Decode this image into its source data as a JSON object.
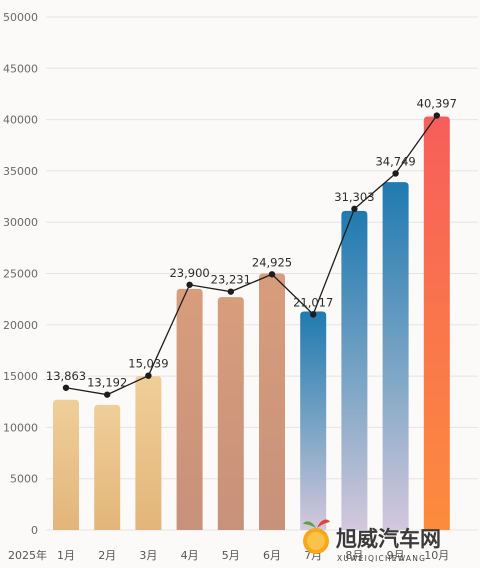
{
  "chart_data": {
    "type": "bar",
    "year_label": "2025年",
    "categories": [
      "1月",
      "2月",
      "3月",
      "4月",
      "5月",
      "6月",
      "7月",
      "8月",
      "9月",
      "10月"
    ],
    "series": [
      {
        "values": [
          12700,
          12200,
          15000,
          23500,
          22700,
          25000,
          21300,
          31100,
          33900,
          40300
        ]
      },
      {
        "values": [
          13863,
          13192,
          15039,
          23900,
          23231,
          24925,
          21017,
          31303,
          34749,
          40397
        ]
      }
    ],
    "data_labels": [
      "13,863",
      "13,192",
      "15,039",
      "23,900",
      "23,231",
      "24,925",
      "21,017",
      "31,303",
      "34,749",
      "40,397"
    ],
    "ylim": [
      0,
      50000
    ],
    "yticks": [
      0,
      5000,
      10000,
      15000,
      20000,
      25000,
      30000,
      35000,
      40000,
      45000,
      50000
    ],
    "grid": true,
    "colors": {
      "q1_top": "#efcf98",
      "q1_bottom": "#e3b57a",
      "q2_top": "#d79d7c",
      "q2_bottom": "#c8917a",
      "q3_top": "#1f7ab0",
      "q3_bottom": "#ccc5da",
      "oct_top": "#f75e5b",
      "oct_bottom": "#fc8c3d",
      "line": "#1d1d1d",
      "grid": "#e4e4e4"
    }
  },
  "watermark": {
    "name": "旭威汽车网",
    "subtitle": "XUWEIQICHEWANG",
    "icon": "orange-fruit-logo"
  }
}
